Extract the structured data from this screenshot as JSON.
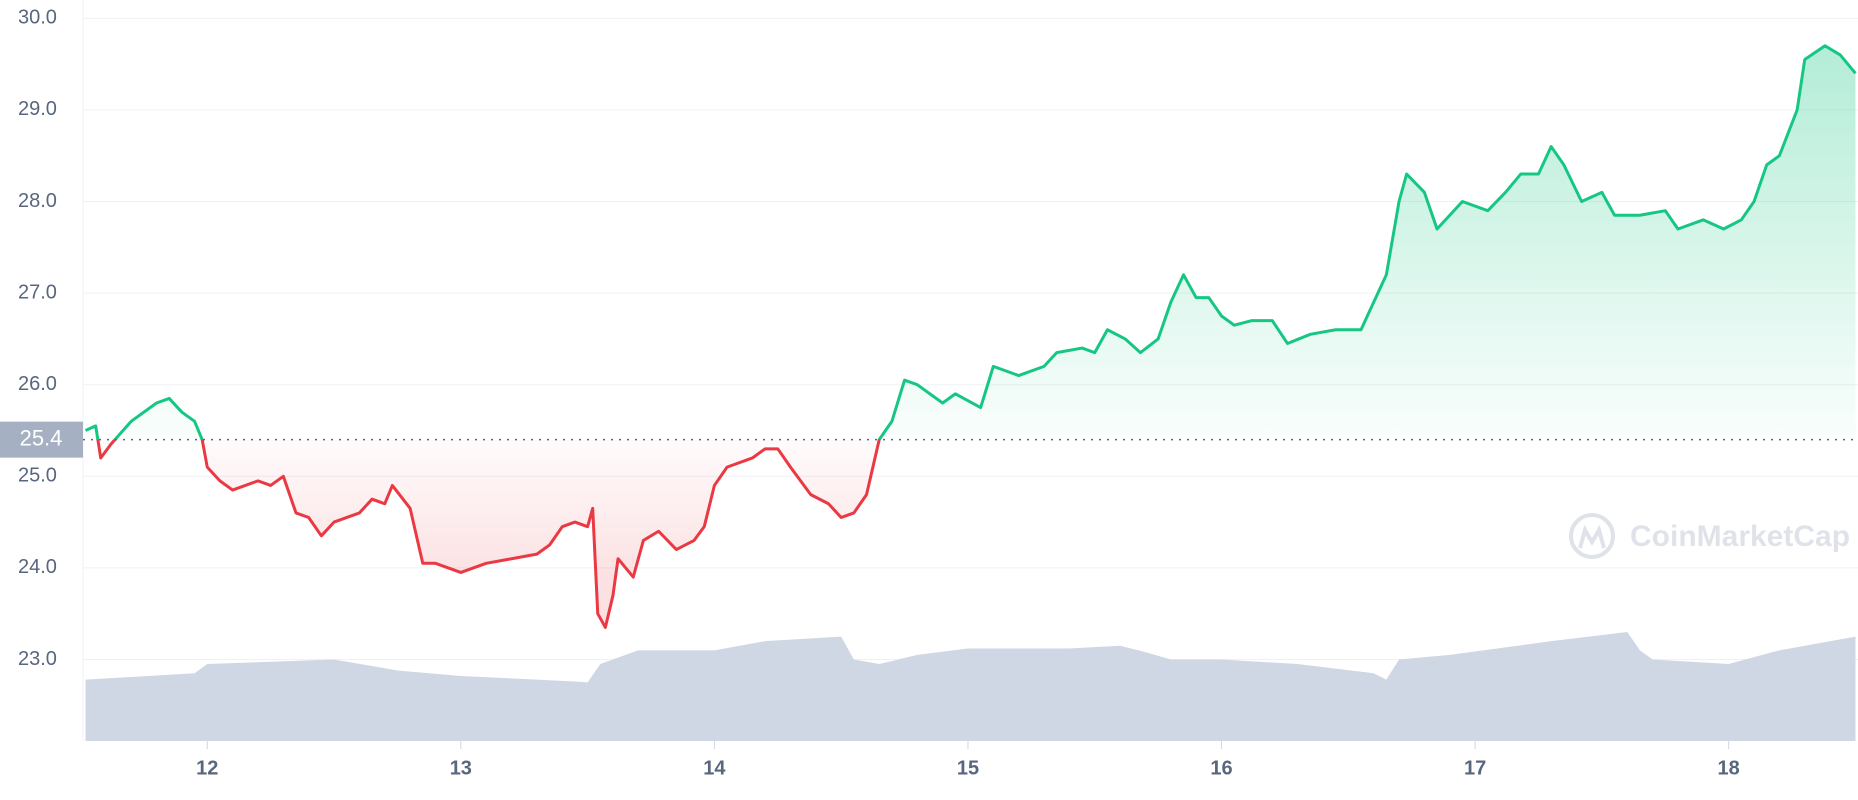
{
  "chart_data": {
    "type": "line",
    "x": [
      11.52,
      11.56,
      11.58,
      11.62,
      11.7,
      11.8,
      11.85,
      11.9,
      11.95,
      11.98,
      12.0,
      12.05,
      12.1,
      12.2,
      12.25,
      12.3,
      12.35,
      12.4,
      12.45,
      12.5,
      12.6,
      12.65,
      12.7,
      12.73,
      12.8,
      12.85,
      12.9,
      13.0,
      13.1,
      13.2,
      13.3,
      13.35,
      13.4,
      13.45,
      13.5,
      13.52,
      13.54,
      13.57,
      13.6,
      13.62,
      13.68,
      13.72,
      13.78,
      13.85,
      13.92,
      13.96,
      14.0,
      14.05,
      14.15,
      14.2,
      14.25,
      14.3,
      14.38,
      14.45,
      14.5,
      14.55,
      14.6,
      14.65,
      14.7,
      14.75,
      14.8,
      14.9,
      14.95,
      15.05,
      15.1,
      15.2,
      15.3,
      15.35,
      15.45,
      15.5,
      15.55,
      15.62,
      15.68,
      15.75,
      15.8,
      15.85,
      15.9,
      15.95,
      16.0,
      16.05,
      16.12,
      16.2,
      16.26,
      16.35,
      16.45,
      16.55,
      16.6,
      16.65,
      16.7,
      16.73,
      16.8,
      16.85,
      16.95,
      17.05,
      17.12,
      17.18,
      17.25,
      17.3,
      17.35,
      17.42,
      17.5,
      17.55,
      17.65,
      17.75,
      17.8,
      17.9,
      17.98,
      18.05,
      18.1,
      18.15,
      18.2,
      18.27,
      18.3,
      18.38,
      18.44,
      18.5
    ],
    "series": [
      {
        "values": [
          25.5,
          25.55,
          25.2,
          25.35,
          25.6,
          25.8,
          25.85,
          25.7,
          25.6,
          25.4,
          25.1,
          24.95,
          24.85,
          24.95,
          24.9,
          25.0,
          24.6,
          24.55,
          24.35,
          24.5,
          24.6,
          24.75,
          24.7,
          24.9,
          24.65,
          24.05,
          24.05,
          23.95,
          24.05,
          24.1,
          24.15,
          24.25,
          24.45,
          24.5,
          24.45,
          24.65,
          23.5,
          23.35,
          23.7,
          24.1,
          23.9,
          24.3,
          24.4,
          24.2,
          24.3,
          24.45,
          24.9,
          25.1,
          25.2,
          25.3,
          25.3,
          25.1,
          24.8,
          24.7,
          24.55,
          24.6,
          24.8,
          25.4,
          25.6,
          26.05,
          26.0,
          25.8,
          25.9,
          25.75,
          26.2,
          26.1,
          26.2,
          26.35,
          26.4,
          26.35,
          26.6,
          26.5,
          26.35,
          26.5,
          26.9,
          27.2,
          26.95,
          26.95,
          26.75,
          26.65,
          26.7,
          26.7,
          26.45,
          26.55,
          26.6,
          26.6,
          26.9,
          27.2,
          28.0,
          28.3,
          28.1,
          27.7,
          28.0,
          27.9,
          28.1,
          28.3,
          28.3,
          28.6,
          28.4,
          28.0,
          28.1,
          27.85,
          27.85,
          27.9,
          27.7,
          27.8,
          27.7,
          27.8,
          28.0,
          28.4,
          28.5,
          29.0,
          29.55,
          29.7,
          29.6,
          29.4
        ],
        "color_up": "#16c784",
        "color_down": "#ea3943"
      }
    ],
    "baseline": 25.4,
    "volume": {
      "x": [
        11.52,
        11.95,
        12.0,
        12.5,
        12.75,
        13.0,
        13.45,
        13.5,
        13.55,
        13.7,
        14.0,
        14.2,
        14.5,
        14.55,
        14.65,
        14.8,
        15.0,
        15.4,
        15.6,
        15.7,
        15.8,
        16.0,
        16.3,
        16.6,
        16.65,
        16.7,
        16.9,
        17.3,
        17.6,
        17.65,
        17.7,
        18.0,
        18.2,
        18.5
      ],
      "values": [
        22.78,
        22.85,
        22.95,
        23.0,
        22.88,
        22.82,
        22.76,
        22.75,
        22.95,
        23.1,
        23.1,
        23.2,
        23.25,
        23.0,
        22.95,
        23.05,
        23.12,
        23.12,
        23.15,
        23.08,
        23.0,
        23.0,
        22.95,
        22.85,
        22.78,
        23.0,
        23.05,
        23.2,
        23.3,
        23.1,
        23.0,
        22.95,
        23.1,
        23.25
      ],
      "color": "#cfd6e4"
    },
    "xlim": [
      11.51,
      18.51
    ],
    "ylim": [
      22.11,
      30.2
    ],
    "xticks": [
      12,
      13,
      14,
      15,
      16,
      17,
      18
    ],
    "yticks": [
      {
        "value": 23,
        "label": "23.0"
      },
      {
        "value": 24,
        "label": "24.0"
      },
      {
        "value": 25,
        "label": "25.0"
      },
      {
        "value": 26,
        "label": "26.0"
      },
      {
        "value": 27,
        "label": "27.0"
      },
      {
        "value": 28,
        "label": "28.0"
      },
      {
        "value": 29,
        "label": "29.0"
      },
      {
        "value": 30,
        "label": "30.0"
      }
    ],
    "grid": true,
    "watermark": "CoinMarketCap"
  }
}
